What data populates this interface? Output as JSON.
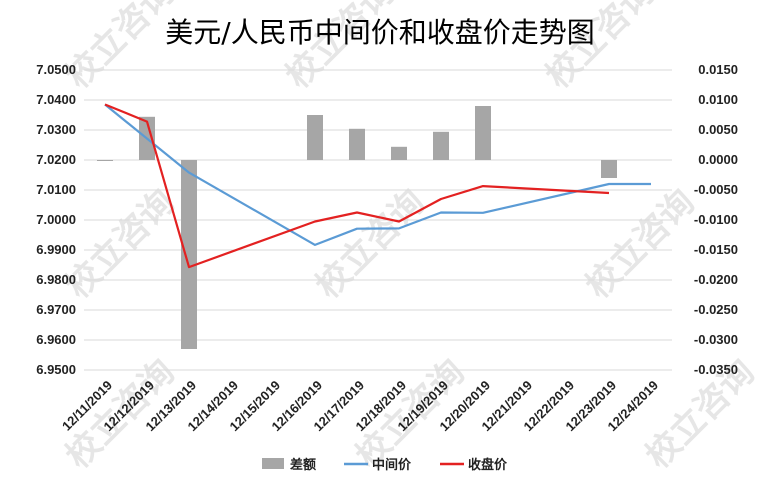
{
  "chart_data": {
    "type": "bar+line",
    "title": "美元/人民币中间价和收盘价走势图",
    "categories": [
      "12/11/2019",
      "12/12/2019",
      "12/13/2019",
      "12/14/2019",
      "12/15/2019",
      "12/16/2019",
      "12/17/2019",
      "12/18/2019",
      "12/19/2019",
      "12/20/2019",
      "12/21/2019",
      "12/22/2019",
      "12/23/2019",
      "12/24/2019"
    ],
    "y_left": {
      "ylim": [
        6.95,
        7.05
      ],
      "ticks": [
        "7.0500",
        "7.0400",
        "7.0300",
        "7.0200",
        "7.0100",
        "7.0000",
        "6.9900",
        "6.9800",
        "6.9700",
        "6.9600",
        "6.9500"
      ]
    },
    "y_right": {
      "ylim": [
        -0.035,
        0.015
      ],
      "ticks": [
        "0.0150",
        "0.0100",
        "0.0050",
        "0.0000",
        "-0.0050",
        "-0.0100",
        "-0.0150",
        "-0.0200",
        "-0.0250",
        "-0.0300",
        "-0.0350"
      ]
    },
    "series": [
      {
        "name": "差额",
        "type": "bar",
        "axis": "right",
        "color": "#a6a6a6",
        "values": [
          0.0,
          0.0072,
          -0.0315,
          null,
          null,
          0.0075,
          0.0052,
          0.0022,
          0.0047,
          0.009,
          null,
          null,
          -0.003,
          null
        ]
      },
      {
        "name": "中间价",
        "type": "line",
        "axis": "left",
        "color": "#5b9bd5",
        "points": [
          [
            0,
            7.0385
          ],
          [
            2,
            7.0158
          ],
          [
            5,
            6.9917
          ],
          [
            6,
            6.9971
          ],
          [
            7,
            6.9972
          ],
          [
            8,
            7.0025
          ],
          [
            9,
            7.0024
          ],
          [
            12,
            7.012
          ],
          [
            13,
            7.012
          ]
        ]
      },
      {
        "name": "收盘价",
        "type": "line",
        "axis": "left",
        "color": "#e32121",
        "points": [
          [
            0,
            7.0385
          ],
          [
            1,
            7.0328
          ],
          [
            2,
            6.9843
          ],
          [
            5,
            6.9995
          ],
          [
            6,
            7.0025
          ],
          [
            7,
            6.9995
          ],
          [
            8,
            7.007
          ],
          [
            9,
            7.0113
          ],
          [
            12,
            7.009
          ]
        ]
      }
    ],
    "legend_position": "bottom",
    "grid": true
  },
  "watermark": "校立咨询"
}
